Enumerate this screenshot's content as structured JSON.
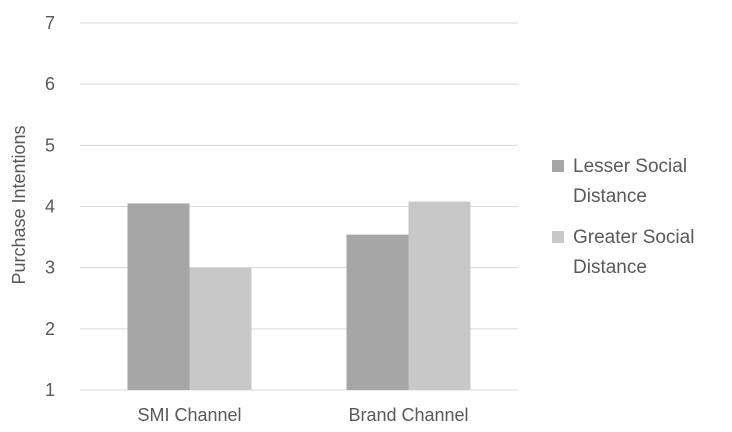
{
  "chart_data": {
    "type": "bar",
    "categories": [
      "SMI Channel",
      "Brand Channel"
    ],
    "series": [
      {
        "name": "Lesser Social Distance",
        "values": [
          4.05,
          3.54
        ],
        "color": "#a6a6a6"
      },
      {
        "name": "Greater Social Distance",
        "values": [
          3.0,
          4.08
        ],
        "color": "#c8c8c8"
      }
    ],
    "ylabel": "Purchase Intentions",
    "xlabel": "",
    "ylim": [
      1,
      7
    ],
    "yticks": [
      1,
      2,
      3,
      4,
      5,
      6,
      7
    ],
    "grid": true,
    "legend_position": "right",
    "legend_lines": [
      [
        "Lesser Social",
        "Distance"
      ],
      [
        "Greater Social",
        "Distance"
      ]
    ],
    "gridline_color": "#d9d9d9",
    "text_color": "#595959"
  }
}
